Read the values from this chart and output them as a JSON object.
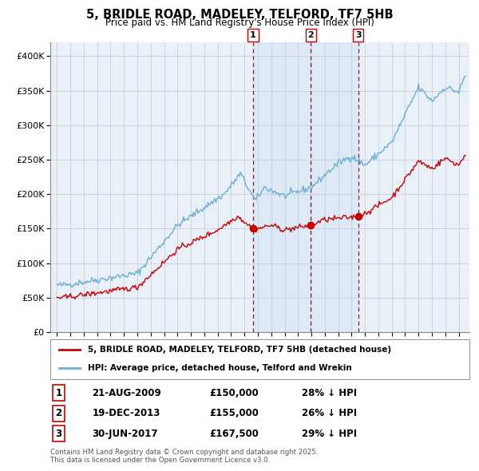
{
  "title": "5, BRIDLE ROAD, MADELEY, TELFORD, TF7 5HB",
  "subtitle": "Price paid vs. HM Land Registry's House Price Index (HPI)",
  "legend_line1": "5, BRIDLE ROAD, MADELEY, TELFORD, TF7 5HB (detached house)",
  "legend_line2": "HPI: Average price, detached house, Telford and Wrekin",
  "footnote": "Contains HM Land Registry data © Crown copyright and database right 2025.\nThis data is licensed under the Open Government Licence v3.0.",
  "transactions": [
    {
      "label": "1",
      "date": "21-AUG-2009",
      "price": 150000,
      "pct": "28% ↓ HPI",
      "date_num": 2009.639
    },
    {
      "label": "2",
      "date": "19-DEC-2013",
      "price": 155000,
      "pct": "26% ↓ HPI",
      "date_num": 2013.964
    },
    {
      "label": "3",
      "date": "30-JUN-2017",
      "price": 167500,
      "pct": "29% ↓ HPI",
      "date_num": 2017.494
    }
  ],
  "hpi_color": "#6baed6",
  "price_color": "#cc0000",
  "plot_bg": "#eaf0f8",
  "grid_color": "#c0c8d8",
  "ylim": [
    0,
    420000
  ],
  "yticks": [
    0,
    50000,
    100000,
    150000,
    200000,
    250000,
    300000,
    350000,
    400000
  ],
  "xlim_start": 1994.5,
  "xlim_end": 2025.8
}
